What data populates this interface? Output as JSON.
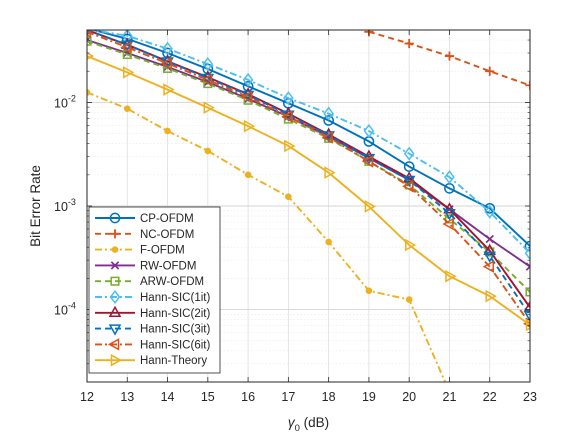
{
  "chart_data": {
    "type": "line",
    "xlabel": "γ0 (dB)",
    "ylabel": "Bit Error Rate",
    "xlim": [
      12,
      23
    ],
    "ylim": [
      2e-05,
      0.05
    ],
    "yscale": "log",
    "grid": true,
    "legend_position": "lower-left",
    "x": [
      12,
      13,
      14,
      15,
      16,
      17,
      18,
      19,
      20,
      21,
      22,
      23
    ],
    "x_tick_labels": [
      "12",
      "13",
      "14",
      "15",
      "16",
      "17",
      "18",
      "19",
      "20",
      "21",
      "22",
      "23"
    ],
    "y_ticks": [
      0.0001,
      0.001,
      0.01
    ],
    "y_tick_labels": [
      {
        "base": "10",
        "exp": "-4"
      },
      {
        "base": "10",
        "exp": "-3"
      },
      {
        "base": "10",
        "exp": "-2"
      }
    ],
    "series": [
      {
        "name": "CP-OFDM",
        "color": "#0072BD",
        "dash": "solid",
        "marker": "circle",
        "x": [
          12,
          13,
          14,
          15,
          16,
          17,
          18,
          19,
          20,
          21,
          22,
          23
        ],
        "values": [
          0.052,
          0.041,
          0.03,
          0.021,
          0.0143,
          0.0098,
          0.0067,
          0.0042,
          0.0024,
          0.00148,
          0.00095,
          0.00041
        ]
      },
      {
        "name": "NC-OFDM",
        "color": "#D95319",
        "dash": "dash",
        "marker": "plus",
        "x": [
          19,
          20,
          21,
          22,
          23
        ],
        "values": [
          0.048,
          0.037,
          0.028,
          0.02,
          0.0146
        ]
      },
      {
        "name": "F-OFDM",
        "color": "#EDB120",
        "dash": "dashdot",
        "marker": "dot",
        "x": [
          12,
          13,
          14,
          15,
          16,
          17,
          18,
          19,
          20,
          21
        ],
        "values": [
          0.0125,
          0.0087,
          0.0053,
          0.0034,
          0.002,
          0.00123,
          0.00045,
          0.000152,
          0.000125,
          1.6e-05
        ]
      },
      {
        "name": "RW-OFDM",
        "color": "#7E2F8E",
        "dash": "solid",
        "marker": "x",
        "x": [
          12,
          13,
          14,
          15,
          16,
          17,
          18,
          19,
          20,
          21,
          22,
          23
        ],
        "values": [
          0.04,
          0.03,
          0.022,
          0.0157,
          0.0108,
          0.0073,
          0.0047,
          0.0029,
          0.00178,
          0.00093,
          0.00048,
          0.00026
        ]
      },
      {
        "name": "ARW-OFDM",
        "color": "#77AC30",
        "dash": "dash",
        "marker": "square",
        "x": [
          12,
          13,
          14,
          15,
          16,
          17,
          18,
          19,
          20,
          21,
          22,
          23
        ],
        "values": [
          0.039,
          0.029,
          0.0213,
          0.0152,
          0.0105,
          0.0069,
          0.0045,
          0.0027,
          0.0016,
          0.00075,
          0.00036,
          0.000148
        ]
      },
      {
        "name": "Hann-SIC(1it)",
        "color": "#4DBEEE",
        "dash": "dashdot",
        "marker": "diamond",
        "x": [
          12,
          13,
          14,
          15,
          16,
          17,
          18,
          19,
          20,
          21,
          22,
          23
        ],
        "values": [
          0.051,
          0.044,
          0.033,
          0.0235,
          0.0165,
          0.011,
          0.0078,
          0.0053,
          0.0032,
          0.0019,
          0.00088,
          0.00035
        ]
      },
      {
        "name": "Hann-SIC(2it)",
        "color": "#A2142F",
        "dash": "solid",
        "marker": "triangle-up",
        "x": [
          12,
          13,
          14,
          15,
          16,
          17,
          18,
          19,
          20,
          21,
          22,
          23
        ],
        "values": [
          0.05,
          0.036,
          0.025,
          0.0175,
          0.012,
          0.0078,
          0.0049,
          0.003,
          0.00185,
          0.00093,
          0.00037,
          0.000105
        ]
      },
      {
        "name": "Hann-SIC(3it)",
        "color": "#0072BD",
        "dash": "dash",
        "marker": "triangle-down",
        "x": [
          12,
          13,
          14,
          15,
          16,
          17,
          18,
          19,
          20,
          21,
          22,
          23
        ],
        "values": [
          0.05,
          0.036,
          0.0248,
          0.0172,
          0.0118,
          0.0076,
          0.0048,
          0.0029,
          0.00178,
          0.00085,
          0.00033,
          8.8e-05
        ]
      },
      {
        "name": "Hann-SIC(6it)",
        "color": "#D95319",
        "dash": "dashdot",
        "marker": "triangle-left",
        "x": [
          12,
          13,
          14,
          15,
          16,
          17,
          18,
          19,
          20,
          21,
          22,
          23
        ],
        "values": [
          0.048,
          0.034,
          0.0238,
          0.0165,
          0.0113,
          0.0073,
          0.0046,
          0.0027,
          0.00155,
          0.00067,
          0.00026,
          7.3e-05
        ]
      },
      {
        "name": "Hann-Theory",
        "color": "#EDB120",
        "dash": "solid",
        "marker": "triangle-right",
        "x": [
          12,
          13,
          14,
          15,
          16,
          17,
          18,
          19,
          20,
          21,
          22,
          23
        ],
        "values": [
          0.028,
          0.0195,
          0.0133,
          0.0089,
          0.0059,
          0.0038,
          0.0021,
          0.00099,
          0.00042,
          0.00021,
          0.000135,
          7.1e-05
        ]
      }
    ]
  }
}
